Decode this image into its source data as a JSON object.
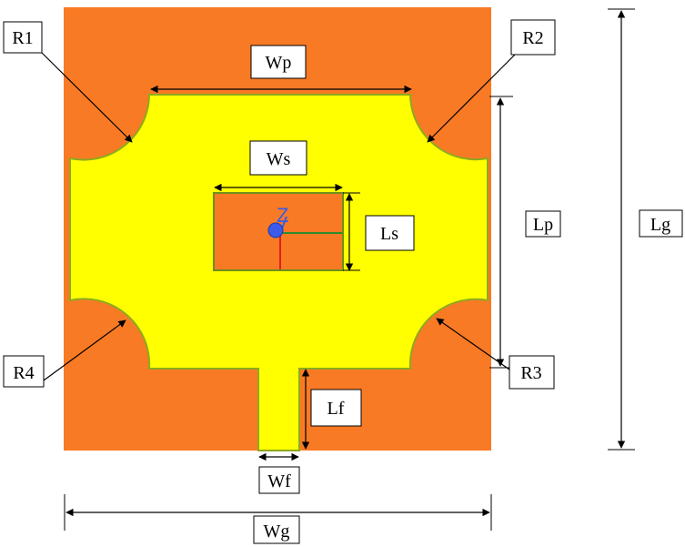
{
  "labels": {
    "wp": "Wp",
    "ws": "Ws",
    "ls": "Ls",
    "lp": "Lp",
    "lg": "Lg",
    "lf": "Lf",
    "wf": "Wf",
    "wg": "Wg",
    "r1": "R1",
    "r2": "R2",
    "r3": "R3",
    "r4": "R4"
  },
  "axis_marker": {
    "label": "Z"
  },
  "colors": {
    "substrate": "#F97A24",
    "patch": "#FFFF00",
    "patch_edge": "#8DAA1E",
    "slot_edge": "#6E8F1A",
    "axis_blue": "#3B5BE8",
    "axis_green": "#2E8B2E",
    "axis_red": "#E02020"
  }
}
